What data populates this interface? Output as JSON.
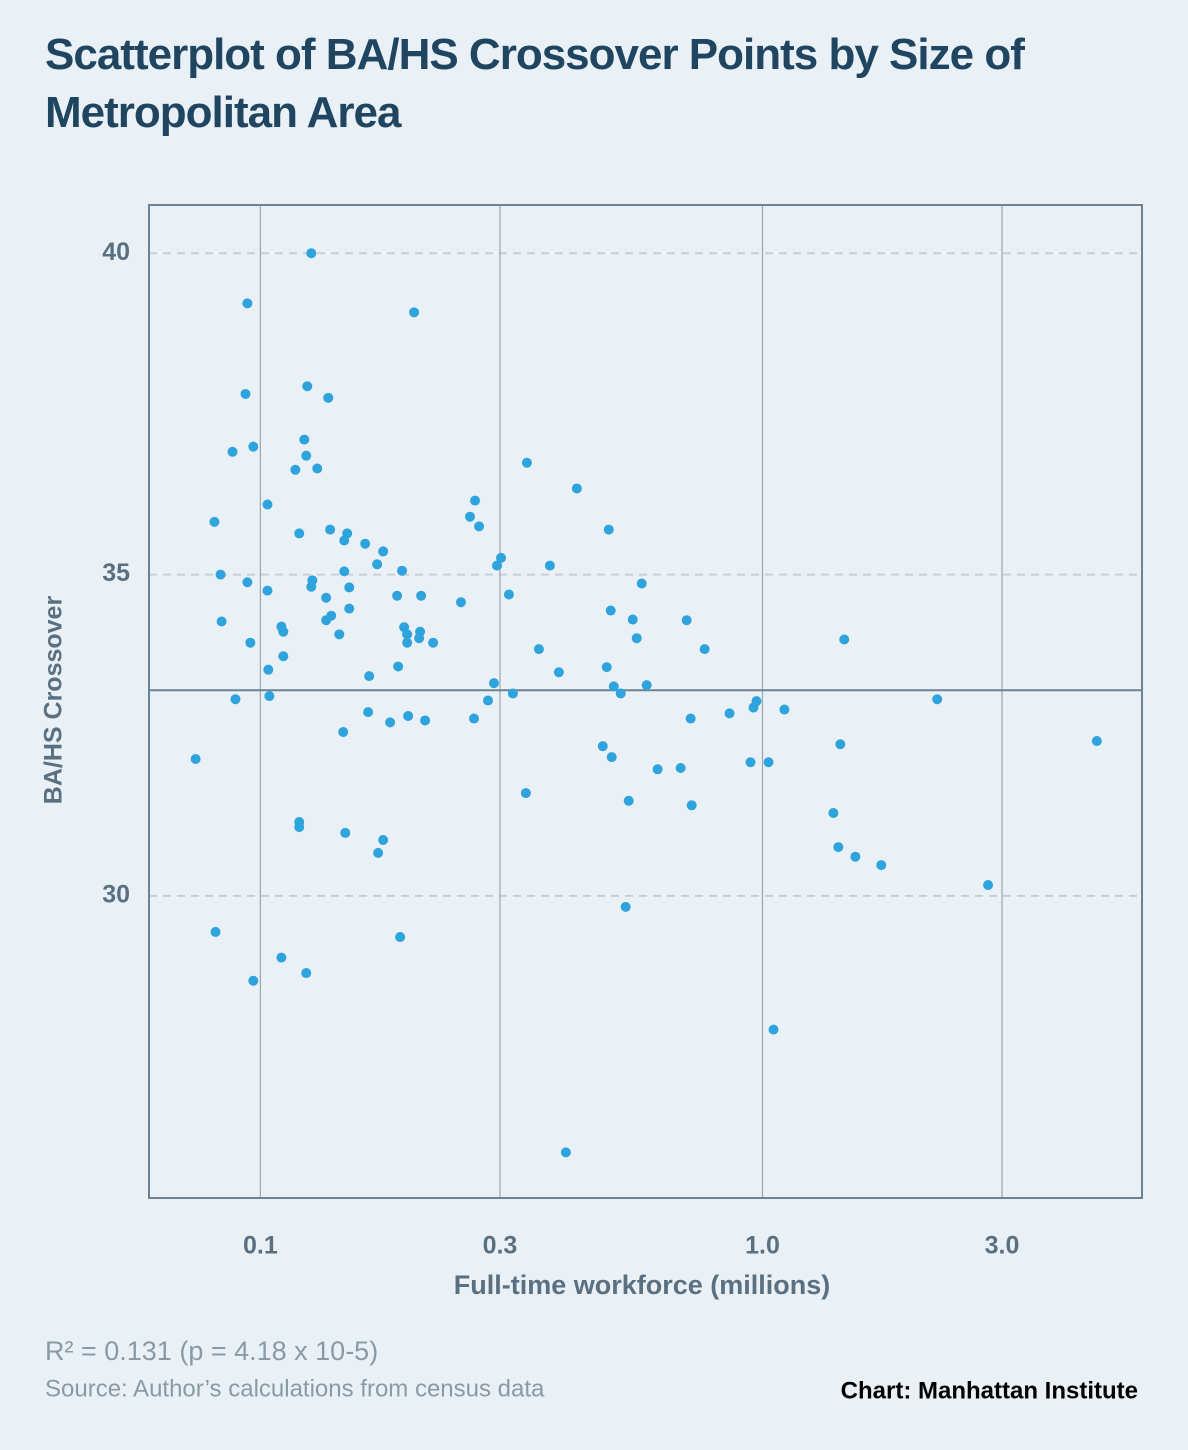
{
  "chart_data": {
    "type": "scatter",
    "title": "Scatterplot of BA/HS Crossover Points by Size of Metropolitan Area",
    "xlabel": "Full-time workforce (millions)",
    "ylabel": "BA/HS Crossover",
    "footnote": "R² = 0.131 (p = 4.18 x 10-5)",
    "source": "Source: Author’s calculations from census data",
    "credit": "Chart: Manhattan Institute",
    "xscale": "log",
    "xlim": [
      0.06,
      5.7
    ],
    "ylim": [
      25.3,
      40.75
    ],
    "xticks": [
      0.1,
      0.3,
      {
        "value": 1,
        "label": "1.0"
      },
      {
        "value": 3,
        "label": "3.0"
      }
    ],
    "yticks": [
      30,
      35,
      40
    ],
    "hline": 33.2,
    "color": "#2ea3dc",
    "x": [
      0.0743,
      0.081,
      0.0814,
      0.0833,
      0.0837,
      0.088,
      0.0892,
      0.0934,
      0.0942,
      0.0942,
      0.0955,
      0.0968,
      0.0968,
      0.1033,
      0.1033,
      0.1037,
      0.1042,
      0.1101,
      0.1111,
      0.1111,
      0.1101,
      0.1174,
      0.1195,
      0.1195,
      0.1195,
      0.1234,
      0.124,
      0.1223,
      0.1234,
      0.1263,
      0.1269,
      0.1263,
      0.1298,
      0.1352,
      0.1352,
      0.1365,
      0.1377,
      0.1384,
      0.1436,
      0.1462,
      0.1469,
      0.1469,
      0.1476,
      0.1489,
      0.1503,
      0.1503,
      0.1617,
      0.1639,
      0.1647,
      0.1708,
      0.1716,
      0.1756,
      0.1756,
      0.1813,
      0.1872,
      0.1881,
      0.1898,
      0.1915,
      0.1933,
      0.196,
      0.196,
      0.1969,
      0.2024,
      0.2071,
      0.209,
      0.208,
      0.2128,
      0.2208,
      0.2509,
      0.2615,
      0.2676,
      0.2726,
      0.2663,
      0.284,
      0.2919,
      0.296,
      0.3015,
      0.3126,
      0.3184,
      0.3379,
      0.3395,
      0.3587,
      0.3772,
      0.3931,
      0.4059,
      0.4268,
      0.4807,
      0.4896,
      0.4941,
      0.4986,
      0.5009,
      0.5056,
      0.522,
      0.534,
      0.5415,
      0.5516,
      0.5618,
      0.5748,
      0.5881,
      0.6182,
      0.6871,
      0.7063,
      0.7194,
      0.7227,
      0.767,
      0.8598,
      0.9465,
      0.9596,
      0.973,
      1.028,
      1.052,
      1.106,
      1.384,
      1.416,
      1.429,
      1.455,
      1.531,
      1.724,
      2.228,
      2.814,
      4.634
    ],
    "values": [
      32.13,
      35.82,
      29.44,
      35.0,
      34.27,
      36.91,
      33.06,
      37.81,
      39.22,
      34.88,
      33.94,
      36.99,
      28.68,
      36.09,
      34.75,
      33.52,
      33.11,
      34.19,
      34.11,
      33.73,
      29.04,
      36.63,
      35.64,
      31.15,
      31.07,
      28.8,
      37.93,
      37.1,
      36.85,
      40.0,
      34.91,
      34.81,
      36.65,
      34.64,
      34.29,
      37.75,
      35.7,
      34.36,
      34.07,
      32.55,
      35.53,
      35.05,
      30.98,
      35.64,
      34.8,
      34.47,
      35.48,
      32.86,
      33.42,
      35.16,
      30.67,
      35.36,
      30.87,
      32.7,
      34.67,
      33.57,
      29.36,
      35.06,
      34.18,
      34.07,
      33.94,
      32.8,
      39.08,
      34.01,
      34.67,
      34.11,
      32.73,
      33.94,
      34.57,
      35.9,
      36.15,
      35.75,
      32.76,
      33.04,
      33.31,
      35.14,
      35.26,
      34.69,
      33.15,
      31.6,
      36.74,
      33.84,
      35.14,
      33.48,
      26.01,
      36.34,
      32.33,
      33.56,
      35.7,
      34.44,
      32.16,
      33.26,
      33.15,
      29.83,
      31.48,
      34.3,
      34.01,
      34.86,
      33.28,
      31.97,
      31.99,
      34.29,
      32.76,
      31.41,
      33.84,
      32.84,
      32.08,
      32.93,
      33.03,
      32.08,
      27.92,
      32.9,
      31.29,
      30.76,
      32.36,
      33.99,
      30.61,
      30.48,
      33.06,
      30.17,
      32.41
    ]
  }
}
